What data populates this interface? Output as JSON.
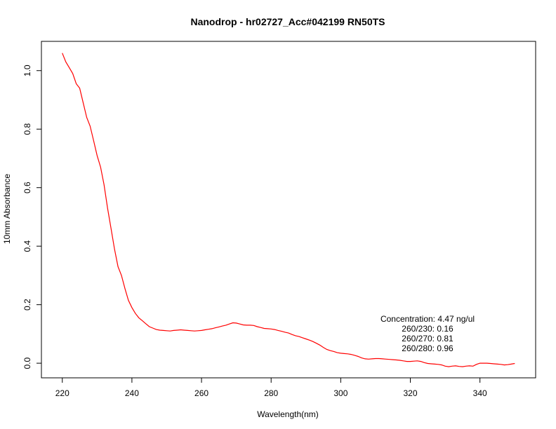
{
  "chart_data": {
    "type": "line",
    "title": "Nanodrop - hr02727_Acc#042199 RN50TS",
    "xlabel": "Wavelength(nm)",
    "ylabel": "10mm Absorbance",
    "xlim": [
      214,
      356
    ],
    "ylim": [
      -0.05,
      1.1
    ],
    "x_ticks": [
      220,
      240,
      260,
      280,
      300,
      320,
      340
    ],
    "x_tick_labels": [
      "220",
      "240",
      "260",
      "280",
      "300",
      "320",
      "340"
    ],
    "y_ticks": [
      0.0,
      0.2,
      0.4,
      0.6,
      0.8,
      1.0
    ],
    "y_tick_labels": [
      "0.0",
      "0.2",
      "0.4",
      "0.6",
      "0.8",
      "1.0"
    ],
    "grid": false,
    "line_color": "#ff0000",
    "series": [
      {
        "x": [
          220,
          221,
          222,
          223,
          224,
          225,
          226,
          227,
          228,
          229,
          230,
          231,
          232,
          233,
          234,
          235,
          236,
          237,
          238,
          239,
          240,
          241,
          242,
          243,
          244,
          245,
          246,
          247,
          248,
          249,
          250,
          251,
          252,
          253,
          254,
          255,
          256,
          257,
          258,
          259,
          260,
          261,
          262,
          263,
          264,
          265,
          266,
          267,
          268,
          269,
          270,
          271,
          272,
          273,
          274,
          275,
          276,
          277,
          278,
          279,
          280,
          281,
          282,
          283,
          284,
          285,
          286,
          287,
          288,
          289,
          290,
          291,
          292,
          293,
          294,
          295,
          296,
          297,
          298,
          299,
          300,
          301,
          302,
          303,
          304,
          305,
          306,
          307,
          308,
          309,
          310,
          311,
          312,
          313,
          314,
          315,
          316,
          317,
          318,
          319,
          320,
          321,
          322,
          323,
          324,
          325,
          326,
          327,
          328,
          329,
          330,
          331,
          332,
          333,
          334,
          335,
          336,
          337,
          338,
          339,
          340,
          341,
          342,
          343,
          344,
          345,
          346,
          347,
          348,
          349,
          350
        ],
        "y": [
          1.06,
          1.03,
          1.01,
          0.99,
          0.955,
          0.94,
          0.89,
          0.84,
          0.81,
          0.76,
          0.71,
          0.67,
          0.61,
          0.53,
          0.46,
          0.39,
          0.33,
          0.3,
          0.255,
          0.215,
          0.19,
          0.17,
          0.155,
          0.145,
          0.135,
          0.125,
          0.12,
          0.115,
          0.113,
          0.112,
          0.111,
          0.11,
          0.112,
          0.113,
          0.114,
          0.113,
          0.112,
          0.111,
          0.11,
          0.111,
          0.112,
          0.114,
          0.116,
          0.118,
          0.121,
          0.124,
          0.127,
          0.13,
          0.134,
          0.138,
          0.137,
          0.134,
          0.131,
          0.13,
          0.13,
          0.129,
          0.125,
          0.122,
          0.119,
          0.118,
          0.117,
          0.115,
          0.112,
          0.109,
          0.106,
          0.103,
          0.098,
          0.094,
          0.091,
          0.087,
          0.083,
          0.079,
          0.074,
          0.068,
          0.062,
          0.054,
          0.047,
          0.043,
          0.04,
          0.036,
          0.034,
          0.033,
          0.032,
          0.03,
          0.027,
          0.023,
          0.018,
          0.015,
          0.014,
          0.015,
          0.016,
          0.016,
          0.015,
          0.014,
          0.013,
          0.012,
          0.011,
          0.01,
          0.008,
          0.006,
          0.006,
          0.007,
          0.008,
          0.006,
          0.002,
          -0.001,
          -0.002,
          -0.003,
          -0.004,
          -0.006,
          -0.01,
          -0.012,
          -0.01,
          -0.009,
          -0.011,
          -0.012,
          -0.01,
          -0.009,
          -0.01,
          -0.004,
          0.0,
          0.0,
          0.0,
          -0.001,
          -0.002,
          -0.003,
          -0.004,
          -0.006,
          -0.005,
          -0.003,
          -0.001
        ]
      }
    ],
    "annotations": [
      "Concentration: 4.47 ng/ul",
      "260/230: 0.16",
      "260/270: 0.81",
      "260/280: 0.96"
    ]
  }
}
